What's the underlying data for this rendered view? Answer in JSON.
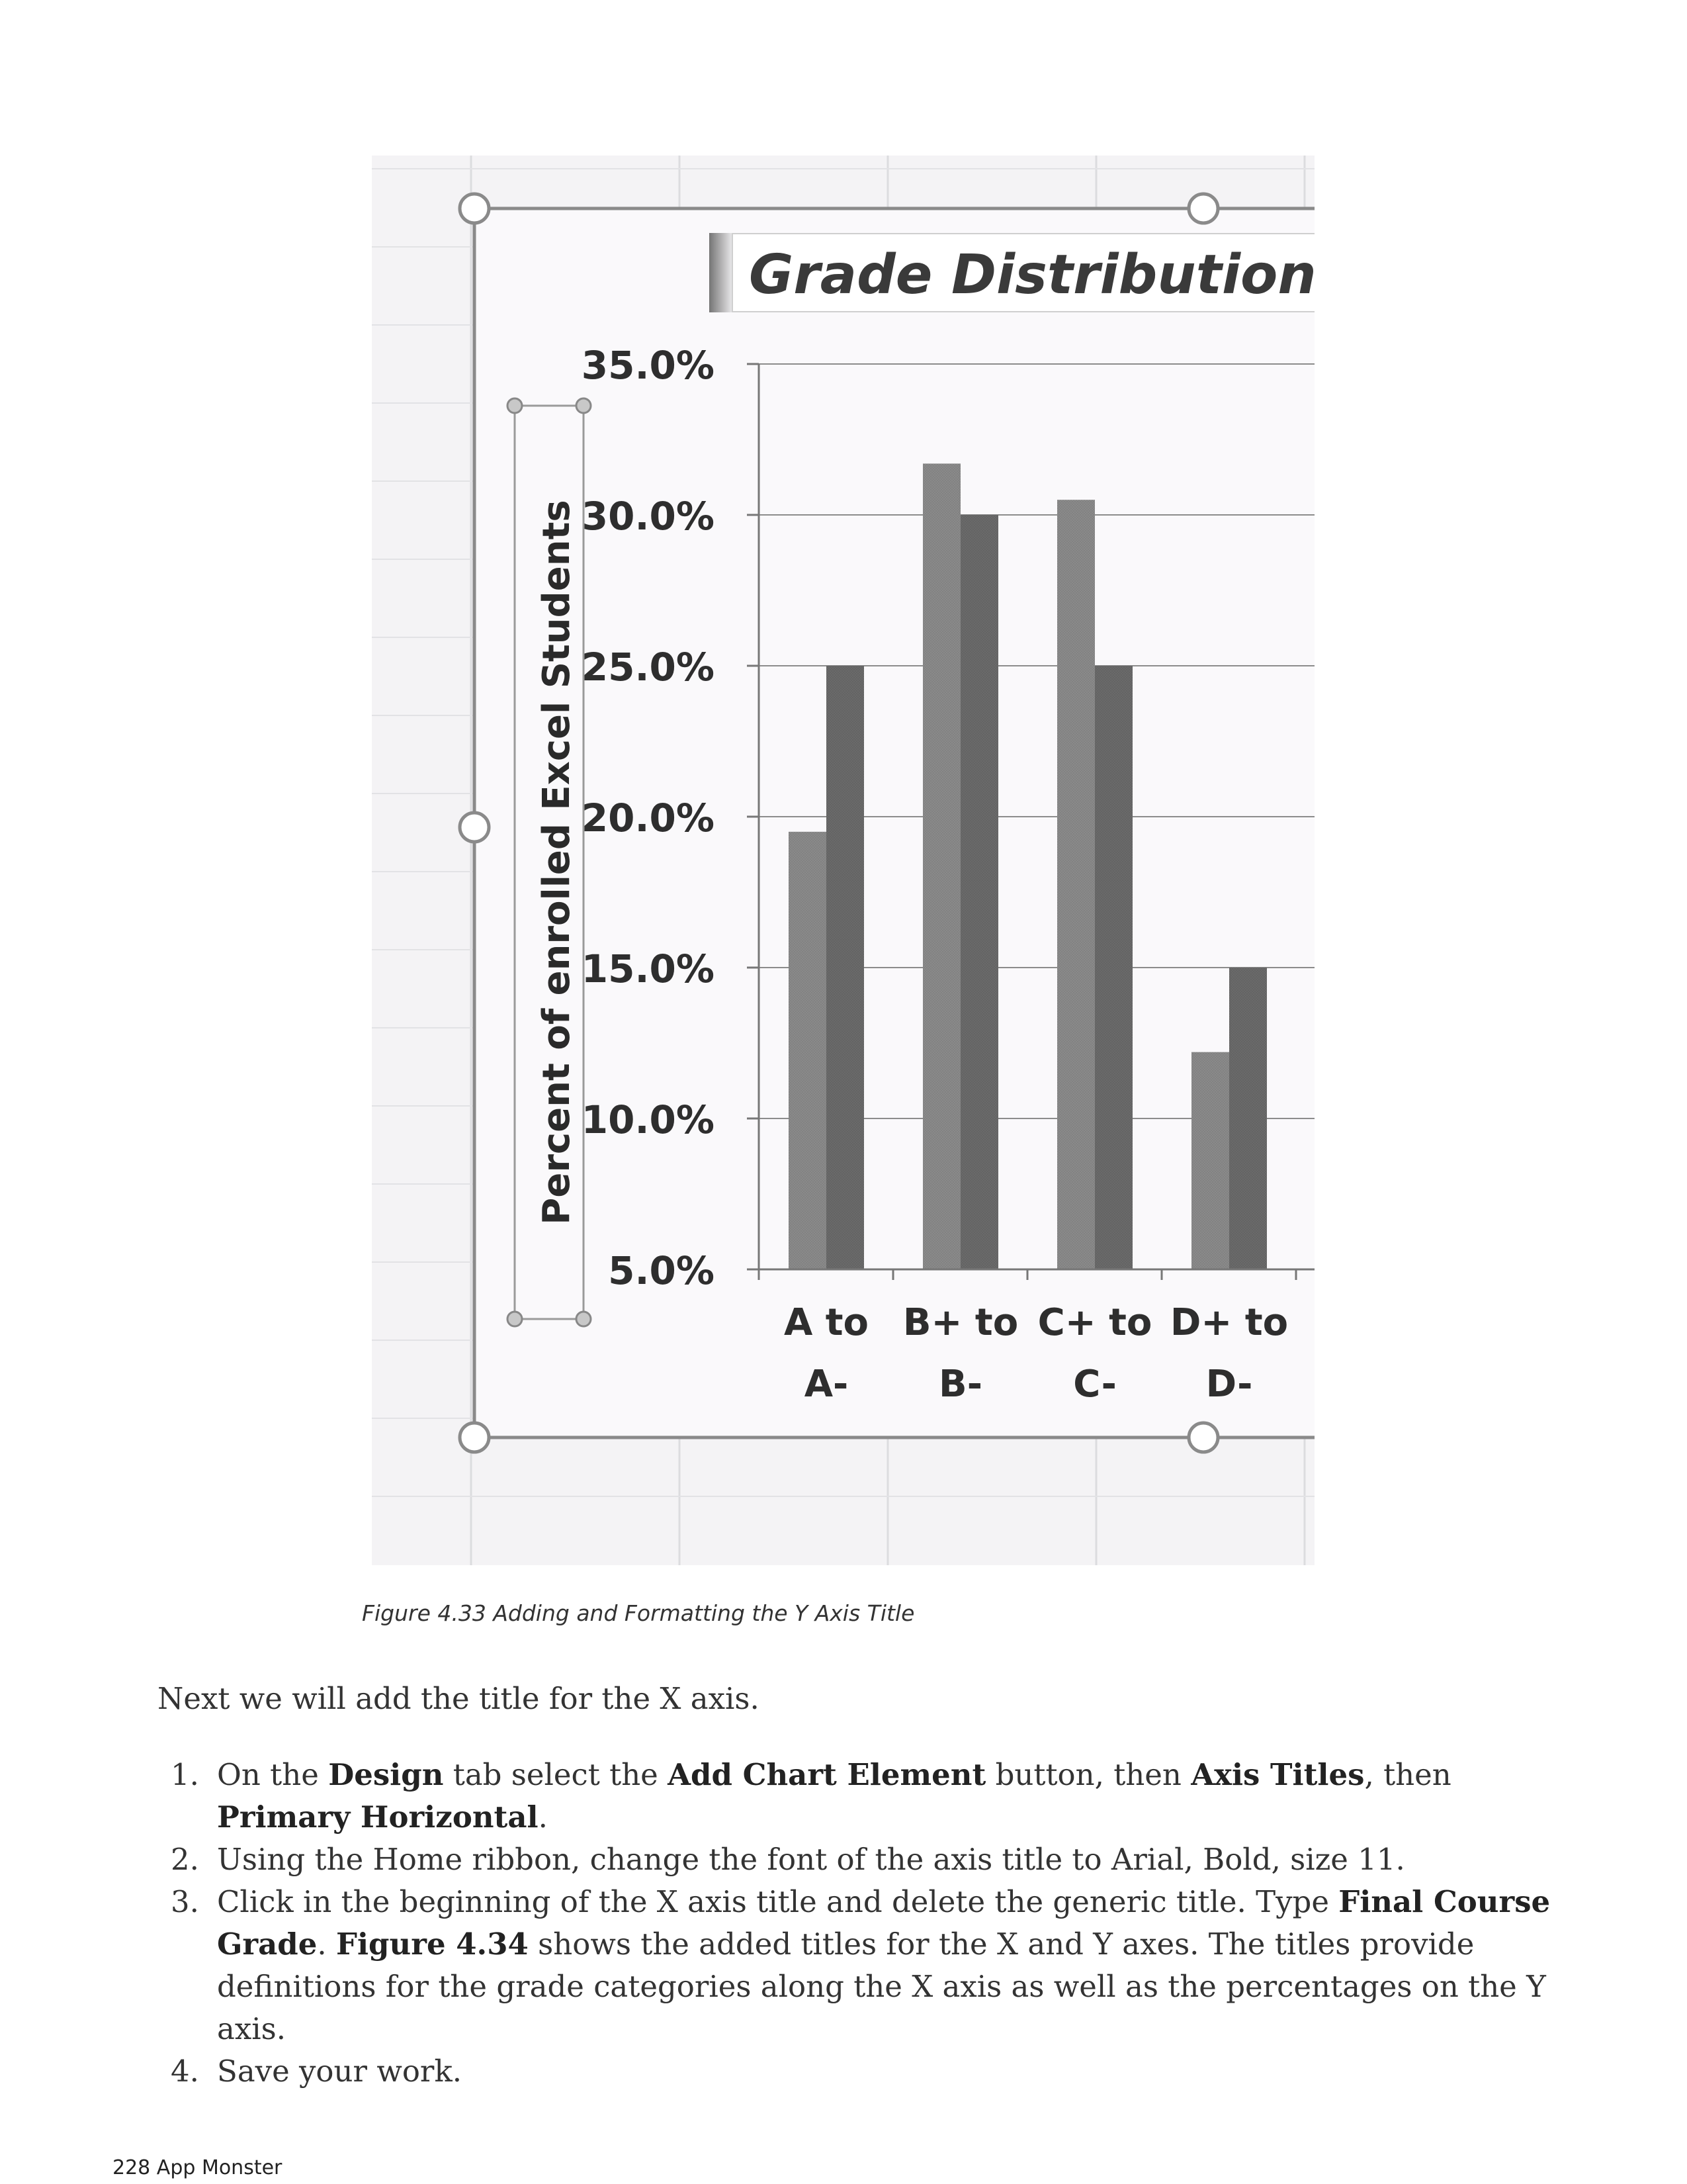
{
  "chart_data": {
    "type": "bar",
    "title": "Grade Distribution C",
    "ylabel": "Percent of enrolled Excel Students",
    "categories": [
      "A to A-",
      "B+ to B-",
      "C+ to C-",
      "D+ to D-"
    ],
    "category_lines": [
      [
        "A to",
        "A-"
      ],
      [
        "B+ to",
        "B-"
      ],
      [
        "C+ to",
        "C-"
      ],
      [
        "D+ to",
        "D-"
      ]
    ],
    "y_ticks": [
      "35.0%",
      "30.0%",
      "25.0%",
      "20.0%",
      "15.0%",
      "10.0%",
      "5.0%"
    ],
    "ylim": [
      5,
      35
    ],
    "series": [
      {
        "values": [
          19.5,
          31.7,
          30.5,
          12.2
        ]
      },
      {
        "values": [
          25.0,
          30.0,
          25.0,
          15.0
        ]
      }
    ],
    "grid": true,
    "colors": {
      "series_1": "#8a8a8a",
      "series_2": "#6a6a6a"
    }
  },
  "caption": "Figure 4.33 Adding and Formatting the Y Axis Title",
  "intro": "Next we will add the title for the X axis.",
  "steps": [
    {
      "number": "1.",
      "parts": [
        {
          "t": "On the "
        },
        {
          "t": "Design",
          "b": true
        },
        {
          "t": " tab select the "
        },
        {
          "t": "Add Chart Element",
          "b": true
        },
        {
          "t": " button, then "
        },
        {
          "t": "Axis Titles",
          "b": true
        },
        {
          "t": ", then "
        },
        {
          "t": "Primary Horizontal",
          "b": true
        },
        {
          "t": "."
        }
      ]
    },
    {
      "number": "2.",
      "parts": [
        {
          "t": "Using the Home ribbon, change the font of the axis title to Arial, Bold, size 11."
        }
      ]
    },
    {
      "number": "3.",
      "parts": [
        {
          "t": "Click in the beginning of the X axis title and delete the generic title. Type "
        },
        {
          "t": "Final Course Grade",
          "b": true
        },
        {
          "t": ". "
        },
        {
          "t": "Figure 4.34",
          "b": true
        },
        {
          "t": " shows the added titles for the X and Y axes. The titles provide definitions for the grade categories along the X axis as well as the percentages on the Y axis."
        }
      ]
    },
    {
      "number": "4.",
      "parts": [
        {
          "t": "Save your work."
        }
      ]
    }
  ],
  "footer": "228 App Monster"
}
